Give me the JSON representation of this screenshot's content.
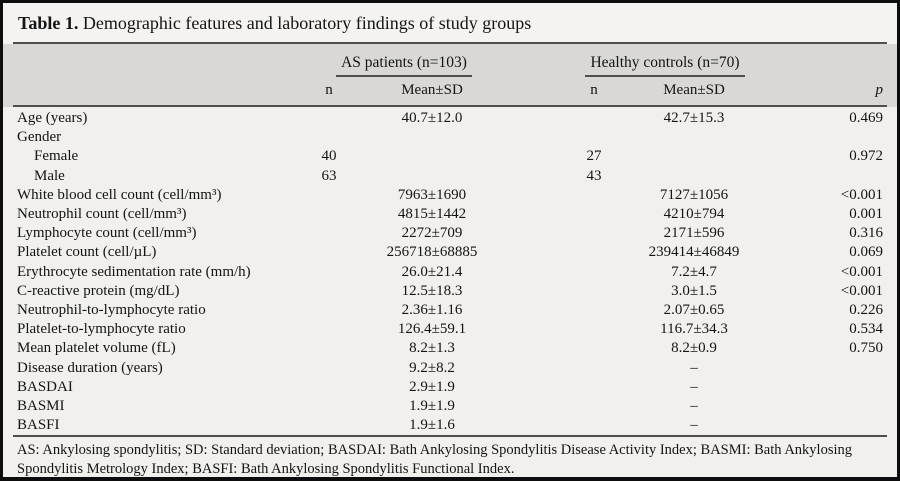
{
  "title": {
    "label": "Table 1.",
    "text": "Demographic features and laboratory findings of study groups"
  },
  "columns": {
    "group1": "AS patients (n=103)",
    "group2": "Healthy controls (n=70)",
    "n": "n",
    "mean_sd": "Mean±SD",
    "p": "p"
  },
  "rows": [
    {
      "label": "Age (years)",
      "indent": false,
      "as_n": "",
      "as_mean": "40.7±12.0",
      "hc_n": "",
      "hc_mean": "42.7±15.3",
      "p": "0.469"
    },
    {
      "label": "Gender",
      "indent": false,
      "as_n": "",
      "as_mean": "",
      "hc_n": "",
      "hc_mean": "",
      "p": ""
    },
    {
      "label": "Female",
      "indent": true,
      "as_n": "40",
      "as_mean": "",
      "hc_n": "27",
      "hc_mean": "",
      "p": "0.972"
    },
    {
      "label": "Male",
      "indent": true,
      "as_n": "63",
      "as_mean": "",
      "hc_n": "43",
      "hc_mean": "",
      "p": ""
    },
    {
      "label": "White blood cell count (cell/mm³)",
      "indent": false,
      "as_n": "",
      "as_mean": "7963±1690",
      "hc_n": "",
      "hc_mean": "7127±1056",
      "p": "<0.001"
    },
    {
      "label": "Neutrophil count (cell/mm³)",
      "indent": false,
      "as_n": "",
      "as_mean": "4815±1442",
      "hc_n": "",
      "hc_mean": "4210±794",
      "p": "0.001"
    },
    {
      "label": "Lymphocyte count (cell/mm³)",
      "indent": false,
      "as_n": "",
      "as_mean": "2272±709",
      "hc_n": "",
      "hc_mean": "2171±596",
      "p": "0.316"
    },
    {
      "label": "Platelet count (cell/µL)",
      "indent": false,
      "as_n": "",
      "as_mean": "256718±68885",
      "hc_n": "",
      "hc_mean": "239414±46849",
      "p": "0.069"
    },
    {
      "label": "Erythrocyte sedimentation rate (mm/h)",
      "indent": false,
      "as_n": "",
      "as_mean": "26.0±21.4",
      "hc_n": "",
      "hc_mean": "7.2±4.7",
      "p": "<0.001"
    },
    {
      "label": "C-reactive protein (mg/dL)",
      "indent": false,
      "as_n": "",
      "as_mean": "12.5±18.3",
      "hc_n": "",
      "hc_mean": "3.0±1.5",
      "p": "<0.001"
    },
    {
      "label": "Neutrophil-to-lymphocyte ratio",
      "indent": false,
      "as_n": "",
      "as_mean": "2.36±1.16",
      "hc_n": "",
      "hc_mean": "2.07±0.65",
      "p": "0.226"
    },
    {
      "label": "Platelet-to-lymphocyte ratio",
      "indent": false,
      "as_n": "",
      "as_mean": "126.4±59.1",
      "hc_n": "",
      "hc_mean": "116.7±34.3",
      "p": "0.534"
    },
    {
      "label": "Mean platelet volume (fL)",
      "indent": false,
      "as_n": "",
      "as_mean": "8.2±1.3",
      "hc_n": "",
      "hc_mean": "8.2±0.9",
      "p": "0.750"
    },
    {
      "label": "Disease duration (years)",
      "indent": false,
      "as_n": "",
      "as_mean": "9.2±8.2",
      "hc_n": "",
      "hc_mean": "–",
      "p": ""
    },
    {
      "label": "BASDAI",
      "indent": false,
      "as_n": "",
      "as_mean": "2.9±1.9",
      "hc_n": "",
      "hc_mean": "–",
      "p": ""
    },
    {
      "label": "BASMI",
      "indent": false,
      "as_n": "",
      "as_mean": "1.9±1.9",
      "hc_n": "",
      "hc_mean": "–",
      "p": ""
    },
    {
      "label": "BASFI",
      "indent": false,
      "as_n": "",
      "as_mean": "1.9±1.6",
      "hc_n": "",
      "hc_mean": "–",
      "p": ""
    }
  ],
  "footnote": "AS: Ankylosing spondylitis; SD: Standard deviation; BASDAI: Bath Ankylosing Spondylitis Disease Activity Index; BASMI: Bath Ankylosing Spondylitis Metrology Index; BASFI: Bath Ankylosing Spondylitis Functional Index.",
  "colors": {
    "border": "#0d0d0d",
    "rule": "#4f4f4f",
    "header_bg": "#d9d8d5",
    "title_bg": "#f4f3f1",
    "body_bg": "#f1f0ed",
    "text": "#141414"
  }
}
